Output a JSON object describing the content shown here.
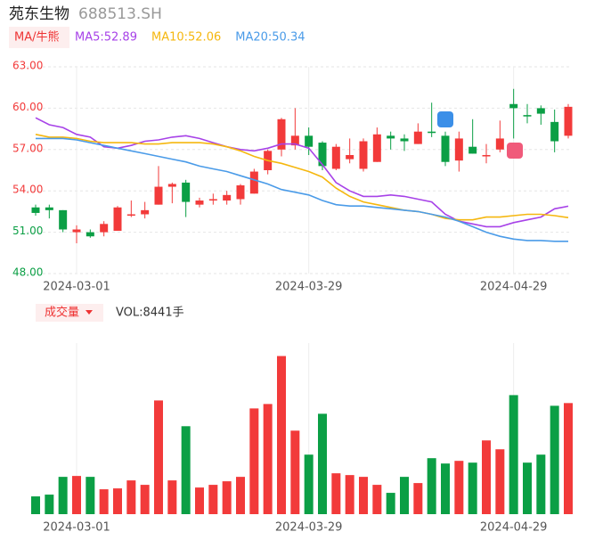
{
  "header": {
    "name": "苑东生物",
    "code": "688513.SH",
    "ma_button": "MA/牛熊",
    "vol_button": "成交量",
    "vol_label": "VOL:8441手"
  },
  "chart_data": {
    "type": "candlestick",
    "categories": [
      null,
      null,
      null,
      "2024-03-01",
      null,
      null,
      null,
      null,
      null,
      null,
      null,
      null,
      null,
      null,
      null,
      null,
      null,
      null,
      null,
      null,
      "2024-03-29",
      null,
      null,
      null,
      null,
      null,
      null,
      null,
      null,
      null,
      null,
      null,
      null,
      null,
      null,
      "2024-04-29",
      null,
      null,
      null,
      null
    ],
    "open": [
      52.8,
      52.8,
      52.6,
      51.0,
      51.0,
      51.0,
      51.1,
      52.2,
      52.3,
      53.0,
      54.3,
      54.6,
      53.0,
      53.3,
      53.3,
      53.4,
      53.8,
      55.5,
      57.0,
      57.3,
      58.0,
      57.5,
      55.6,
      56.3,
      55.6,
      56.1,
      58.0,
      57.8,
      57.4,
      58.3,
      58.0,
      56.2,
      57.2,
      56.5,
      57.0,
      60.3,
      59.5,
      60.0,
      59.0,
      58.0
    ],
    "high": [
      53.0,
      53.0,
      52.6,
      51.5,
      51.2,
      51.8,
      52.9,
      53.3,
      53.2,
      55.8,
      54.6,
      54.8,
      53.5,
      53.8,
      54.0,
      54.5,
      55.6,
      57.0,
      59.3,
      60.0,
      58.6,
      57.6,
      57.4,
      57.8,
      57.8,
      58.6,
      58.3,
      58.1,
      58.9,
      60.4,
      58.3,
      58.3,
      59.2,
      57.4,
      59.1,
      61.4,
      60.3,
      60.2,
      59.9,
      60.3
    ],
    "low": [
      52.2,
      52.0,
      51.0,
      50.2,
      50.6,
      50.7,
      51.1,
      52.1,
      52.0,
      53.0,
      53.1,
      52.1,
      52.8,
      53.0,
      53.0,
      53.0,
      53.8,
      55.2,
      56.5,
      57.0,
      56.6,
      55.5,
      55.5,
      56.0,
      55.4,
      56.1,
      57.0,
      56.9,
      57.4,
      57.9,
      55.8,
      55.4,
      56.7,
      56.0,
      56.8,
      57.8,
      58.9,
      58.8,
      56.8,
      57.8
    ],
    "close": [
      52.4,
      52.6,
      51.2,
      51.2,
      50.7,
      51.6,
      52.8,
      52.3,
      52.6,
      54.3,
      54.5,
      53.2,
      53.3,
      53.4,
      53.7,
      54.4,
      55.4,
      56.9,
      59.2,
      58.0,
      57.2,
      55.8,
      57.2,
      56.6,
      57.6,
      58.1,
      57.8,
      57.6,
      58.3,
      58.2,
      56.1,
      57.8,
      56.7,
      56.6,
      57.8,
      60.0,
      59.4,
      59.6,
      57.6,
      60.1
    ],
    "up_color": "#f23a3a",
    "down_color": "#0b9f45",
    "series": [
      {
        "name": "MA5",
        "label": "MA5:52.89",
        "color": "#a742e8",
        "values": [
          59.3,
          58.8,
          58.6,
          58.1,
          57.9,
          57.2,
          57.1,
          57.3,
          57.6,
          57.7,
          57.9,
          58.0,
          57.8,
          57.5,
          57.2,
          57.0,
          56.9,
          57.1,
          57.4,
          57.4,
          57.1,
          55.9,
          54.6,
          54.0,
          53.6,
          53.6,
          53.7,
          53.6,
          53.4,
          53.2,
          52.3,
          51.8,
          51.6,
          51.4,
          51.4,
          51.7,
          51.9,
          52.1,
          52.7,
          52.89
        ]
      },
      {
        "name": "MA10",
        "label": "MA10:52.06",
        "color": "#f5b70f",
        "values": [
          58.1,
          57.9,
          57.9,
          57.8,
          57.6,
          57.5,
          57.5,
          57.5,
          57.4,
          57.4,
          57.5,
          57.5,
          57.5,
          57.4,
          57.2,
          56.9,
          56.5,
          56.2,
          56.0,
          55.7,
          55.4,
          55.0,
          54.2,
          53.6,
          53.2,
          53.0,
          52.8,
          52.6,
          52.5,
          52.3,
          52.0,
          51.9,
          51.9,
          52.1,
          52.1,
          52.2,
          52.3,
          52.3,
          52.2,
          52.06
        ]
      },
      {
        "name": "MA20",
        "label": "MA20:50.34",
        "color": "#4a9be8",
        "values": [
          57.8,
          57.8,
          57.8,
          57.7,
          57.5,
          57.3,
          57.1,
          56.9,
          56.7,
          56.5,
          56.3,
          56.1,
          55.8,
          55.6,
          55.4,
          55.1,
          54.8,
          54.5,
          54.1,
          53.9,
          53.7,
          53.3,
          53.0,
          52.9,
          52.9,
          52.8,
          52.7,
          52.6,
          52.5,
          52.3,
          52.1,
          51.8,
          51.4,
          51.0,
          50.7,
          50.5,
          50.4,
          50.4,
          50.34,
          50.34
        ]
      }
    ],
    "ylim": [
      48,
      63
    ],
    "yticks": [
      {
        "value": 63,
        "label": "63.00"
      },
      {
        "value": 60,
        "label": "60.00"
      },
      {
        "value": 57,
        "label": "57.00"
      },
      {
        "value": 54,
        "label": "54.00"
      },
      {
        "value": 51,
        "label": "51.00"
      },
      {
        "value": 48,
        "label": "48.00"
      }
    ],
    "ytick_colors": [
      "#f23a3a",
      "#f23a3a",
      "#f23a3a",
      "#f23a3a",
      "#0b9f45",
      "#0b9f45"
    ],
    "grid": true,
    "volume": [
      1350,
      1485,
      2835,
      2903,
      2835,
      1890,
      1958,
      2565,
      2228,
      8640,
      2565,
      6683,
      2025,
      2228,
      2498,
      2835,
      8033,
      8370,
      12015,
      6345,
      4523,
      7628,
      3105,
      2970,
      2835,
      2228,
      1620,
      2835,
      2363,
      4253,
      3848,
      4050,
      3915,
      5603,
      4928,
      9045,
      3915,
      4523,
      8235,
      8441
    ],
    "volume_ylim": [
      0,
      13000
    ]
  }
}
